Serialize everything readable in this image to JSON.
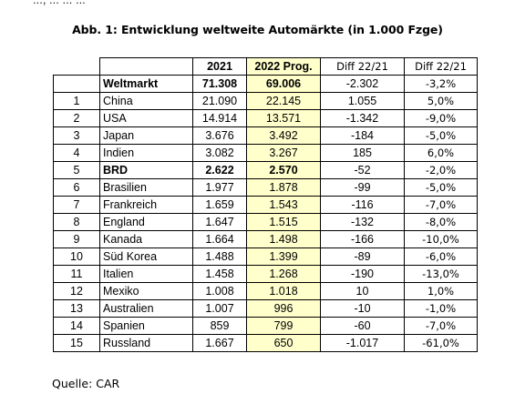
{
  "top_fragment": "..., ... ... ...",
  "title": "Abb. 1: Entwicklung weltweite Automärkte (in 1.000 Fzge)",
  "columns": {
    "y2021": "2021",
    "y2022": "2022 Prog.",
    "diff_abs": "Diff 22/21",
    "diff_pct": "Diff 22/21"
  },
  "world": {
    "label": "Weltmarkt",
    "v2021": "71.308",
    "v2022": "69.006",
    "diff_abs": "-2.302",
    "diff_pct": "-3,2%"
  },
  "rows": [
    {
      "rank": "1",
      "country": "China",
      "v2021": "21.090",
      "v2022": "22.145",
      "diff_abs": "1.055",
      "diff_pct": "5,0%"
    },
    {
      "rank": "2",
      "country": "USA",
      "v2021": "14.914",
      "v2022": "13.571",
      "diff_abs": "-1.342",
      "diff_pct": "-9,0%"
    },
    {
      "rank": "3",
      "country": "Japan",
      "v2021": "3.676",
      "v2022": "3.492",
      "diff_abs": "-184",
      "diff_pct": "-5,0%"
    },
    {
      "rank": "4",
      "country": "Indien",
      "v2021": "3.082",
      "v2022": "3.267",
      "diff_abs": "185",
      "diff_pct": "6,0%"
    },
    {
      "rank": "5",
      "country": "BRD",
      "v2021": "2.622",
      "v2022": "2.570",
      "diff_abs": "-52",
      "diff_pct": "-2,0%"
    },
    {
      "rank": "6",
      "country": "Brasilien",
      "v2021": "1.977",
      "v2022": "1.878",
      "diff_abs": "-99",
      "diff_pct": "-5,0%"
    },
    {
      "rank": "7",
      "country": "Frankreich",
      "v2021": "1.659",
      "v2022": "1.543",
      "diff_abs": "-116",
      "diff_pct": "-7,0%"
    },
    {
      "rank": "8",
      "country": "England",
      "v2021": "1.647",
      "v2022": "1.515",
      "diff_abs": "-132",
      "diff_pct": "-8,0%"
    },
    {
      "rank": "9",
      "country": "Kanada",
      "v2021": "1.664",
      "v2022": "1.498",
      "diff_abs": "-166",
      "diff_pct": "-10,0%"
    },
    {
      "rank": "10",
      "country": "Süd Korea",
      "v2021": "1.488",
      "v2022": "1.399",
      "diff_abs": "-89",
      "diff_pct": "-6,0%"
    },
    {
      "rank": "11",
      "country": "Italien",
      "v2021": "1.458",
      "v2022": "1.268",
      "diff_abs": "-190",
      "diff_pct": "-13,0%"
    },
    {
      "rank": "12",
      "country": "Mexiko",
      "v2021": "1.008",
      "v2022": "1.018",
      "diff_abs": "10",
      "diff_pct": "1,0%"
    },
    {
      "rank": "13",
      "country": "Australien",
      "v2021": "1.007",
      "v2022": "996",
      "diff_abs": "-10",
      "diff_pct": "-1,0%"
    },
    {
      "rank": "14",
      "country": "Spanien",
      "v2021": "859",
      "v2022": "799",
      "diff_abs": "-60",
      "diff_pct": "-7,0%"
    },
    {
      "rank": "15",
      "country": "Russland",
      "v2021": "1.667",
      "v2022": "650",
      "diff_abs": "-1.017",
      "diff_pct": "-61,0%"
    }
  ],
  "bold_rows": [
    "5"
  ],
  "source": "Quelle: CAR",
  "colors": {
    "highlight": "#ffffcc",
    "border": "#000000"
  }
}
